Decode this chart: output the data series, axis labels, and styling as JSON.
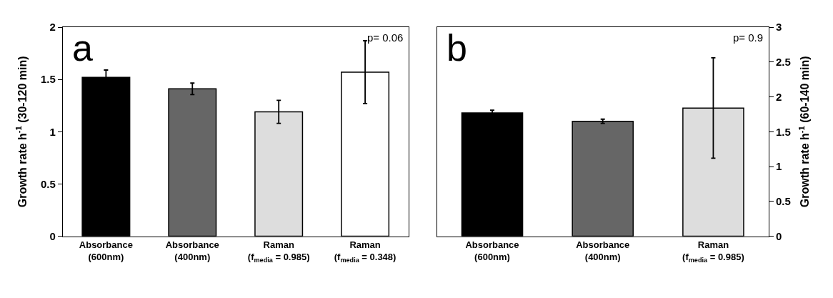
{
  "chart_data": [
    {
      "type": "bar",
      "ylabel": "Growth rate h$^{-1}$ (30-120 min)",
      "categories": [
        "Absorbance\n(600nm)",
        "Absorbance\n(400nm)",
        "Raman\n(f$_{media}$ = 0.985)",
        "Raman\n(f$_{media}$ = 0.348)"
      ],
      "values": [
        1.52,
        1.41,
        1.19,
        1.57
      ],
      "errors": [
        0.07,
        0.055,
        0.11,
        0.3
      ],
      "colors": [
        "#000000",
        "#666666",
        "#dddddd",
        "#ffffff"
      ],
      "ylim": [
        0,
        2
      ],
      "yticks": [
        0,
        0.5,
        1,
        1.5,
        2
      ],
      "annotations": [
        "a",
        "p= 0.06"
      ]
    },
    {
      "type": "bar",
      "y2label": "Growth rate h$^{-1}$ (60-140 min)",
      "categories": [
        "Absorbance\n(600nm)",
        "Absorbance\n(400nm)",
        "Raman\n(f$_{media}$ = 0.985)"
      ],
      "series": [
        {
          "axis": "y2",
          "values": [
            1.77,
            1.65,
            1.84
          ],
          "errors": [
            0.04,
            0.03,
            0.72
          ],
          "colors": [
            "#000000",
            "#666666",
            "#dddddd"
          ]
        }
      ],
      "y2lim": [
        0,
        3
      ],
      "y2ticks": [
        0,
        0.5,
        1,
        1.5,
        2,
        2.5,
        3
      ],
      "annotations": [
        "b",
        "p= 0.9"
      ]
    }
  ]
}
